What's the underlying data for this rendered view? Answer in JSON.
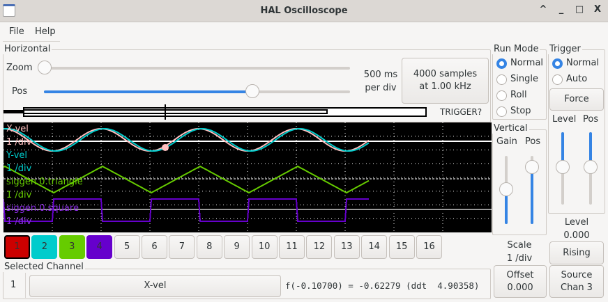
{
  "window": {
    "title": "HAL Oscilloscope",
    "controls": [
      "^",
      "_",
      "□",
      "X"
    ]
  },
  "menu": [
    "File",
    "Help"
  ],
  "horizontal": {
    "label": "Horizontal",
    "zoom_label": "Zoom",
    "pos_label": "Pos",
    "zoom_value": 0,
    "pos_value": 0.68,
    "timebase_line1": "500 ms",
    "timebase_line2": "per div",
    "samples_line1": "4000 samples",
    "samples_line2": "at 1.00 kHz",
    "trigger_status": "TRIGGER?"
  },
  "run_mode": {
    "label": "Run Mode",
    "options": [
      "Normal",
      "Single",
      "Roll",
      "Stop"
    ],
    "selected": "Normal"
  },
  "trigger": {
    "label": "Trigger",
    "options": [
      "Normal",
      "Auto"
    ],
    "selected": "Normal",
    "force_label": "Force",
    "level_label": "Level",
    "pos_label": "Pos",
    "level_title": "Level",
    "level_value": "0.000",
    "edge_label": "Rising",
    "source_line1": "Source",
    "source_line2": "Chan 3"
  },
  "vertical": {
    "label": "Vertical",
    "gain_label": "Gain",
    "pos_label": "Pos",
    "scale_title": "Scale",
    "scale_value": "1 /div",
    "offset_line1": "Offset",
    "offset_line2": "0.000"
  },
  "traces": [
    {
      "name": "X-vel",
      "scale": "1 /div",
      "color": "#ffc0c0"
    },
    {
      "name": "Y-vel",
      "scale": "1 /div",
      "color": "#00cccc"
    },
    {
      "name": "siggen.0.triangle",
      "scale": "1 /div",
      "color": "#66cc00"
    },
    {
      "name": "siggen.0.square",
      "scale": "1 /div",
      "color": "#6600cc"
    }
  ],
  "channels": [
    {
      "label": "1",
      "color": "#cc0000"
    },
    {
      "label": "2",
      "color": "#00cccc"
    },
    {
      "label": "3",
      "color": "#66cc00"
    },
    {
      "label": "4",
      "color": "#6600cc"
    },
    {
      "label": "5"
    },
    {
      "label": "6"
    },
    {
      "label": "7"
    },
    {
      "label": "8"
    },
    {
      "label": "9"
    },
    {
      "label": "10"
    },
    {
      "label": "11"
    },
    {
      "label": "12"
    },
    {
      "label": "13"
    },
    {
      "label": "14"
    },
    {
      "label": "15"
    },
    {
      "label": "16"
    }
  ],
  "selected_channel": {
    "label": "Selected Channel",
    "number": "1",
    "name": "X-vel",
    "readout": "f(-0.10700) = -0.62279 (ddt  4.90358)"
  }
}
